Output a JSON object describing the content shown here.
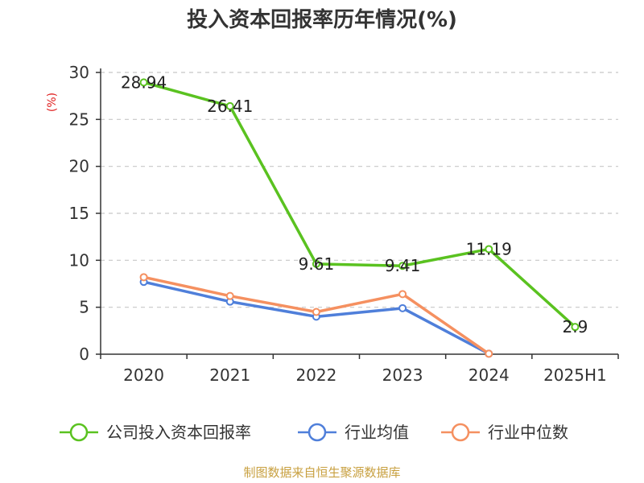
{
  "chart_data": {
    "type": "line",
    "title": "投入资本回报率历年情况(%)",
    "ylabel": "(%)",
    "categories": [
      "2020",
      "2021",
      "2022",
      "2023",
      "2024",
      "2025H1"
    ],
    "yticks": [
      "0",
      "5",
      "10",
      "15",
      "20",
      "25",
      "30"
    ],
    "ylim": [
      0,
      30
    ],
    "grid": true,
    "legend_position": "bottom",
    "series": [
      {
        "name": "公司投入资本回报率",
        "color": "#5ac220",
        "values": [
          28.94,
          26.41,
          9.61,
          9.41,
          11.19,
          2.9
        ],
        "labels": [
          "28.94",
          "26.41",
          "9.61",
          "9.41",
          "11.19",
          "2.9"
        ]
      },
      {
        "name": "行业均值",
        "color": "#4f7fda",
        "values": [
          7.7,
          5.6,
          4.0,
          4.9,
          0.05,
          null
        ]
      },
      {
        "name": "行业中位数",
        "color": "#f59060",
        "values": [
          8.2,
          6.2,
          4.5,
          6.4,
          0.05,
          null
        ]
      }
    ]
  },
  "source": "制图数据来自恒生聚源数据库"
}
